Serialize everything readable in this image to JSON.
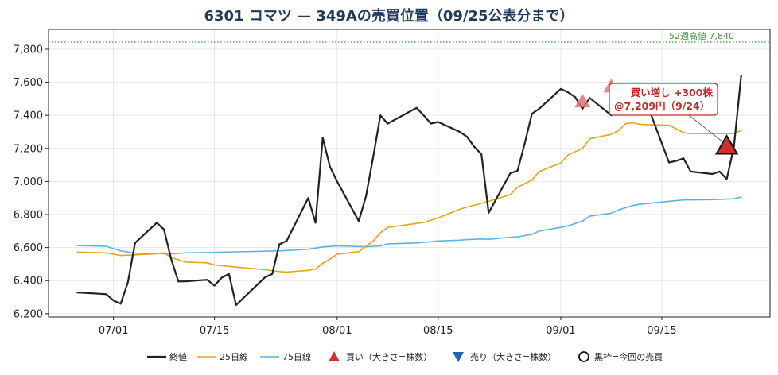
{
  "chart_data": {
    "type": "line",
    "title": "6301 コマツ — 349Aの売買位置（09/25公表分まで）",
    "ylim": [
      6180,
      7920
    ],
    "y_ticks": [
      6200,
      6400,
      6600,
      6800,
      7000,
      7200,
      7400,
      7600,
      7800
    ],
    "y_tick_labels": [
      "6,200",
      "6,400",
      "6,600",
      "6,800",
      "7,000",
      "7,200",
      "7,400",
      "7,600",
      "7,800"
    ],
    "xlim": [
      "2025-06-22",
      "2025-09-30"
    ],
    "x_ticks": [
      "2025-07-01",
      "2025-07-15",
      "2025-08-01",
      "2025-08-15",
      "2025-09-01",
      "2025-09-15"
    ],
    "x_tick_labels": [
      "07/01",
      "07/15",
      "08/01",
      "08/15",
      "09/01",
      "09/15"
    ],
    "grid": true,
    "legend_position": "bottom",
    "colors": {
      "close": "#222222",
      "ma25": "#e8a317",
      "ma75": "#5ab4e0",
      "buy": "#d32f2f",
      "buy_past": "#e57373",
      "sell": "#1e63b4",
      "ref_line": "#3a9a3a",
      "annotation": "#c62828"
    },
    "series": [
      {
        "name": "終値",
        "points": [
          [
            "2025-06-26",
            6328
          ],
          [
            "2025-06-27",
            6326
          ],
          [
            "2025-06-30",
            6318
          ],
          [
            "2025-07-01",
            6280
          ],
          [
            "2025-07-02",
            6260
          ],
          [
            "2025-07-03",
            6390
          ],
          [
            "2025-07-04",
            6628
          ],
          [
            "2025-07-07",
            6750
          ],
          [
            "2025-07-08",
            6710
          ],
          [
            "2025-07-09",
            6530
          ],
          [
            "2025-07-10",
            6395
          ],
          [
            "2025-07-11",
            6396
          ],
          [
            "2025-07-14",
            6405
          ],
          [
            "2025-07-15",
            6370
          ],
          [
            "2025-07-16",
            6418
          ],
          [
            "2025-07-17",
            6440
          ],
          [
            "2025-07-18",
            6252
          ],
          [
            "2025-07-22",
            6420
          ],
          [
            "2025-07-23",
            6440
          ],
          [
            "2025-07-24",
            6620
          ],
          [
            "2025-07-25",
            6640
          ],
          [
            "2025-07-28",
            6900
          ],
          [
            "2025-07-29",
            6750
          ],
          [
            "2025-07-30",
            7265
          ],
          [
            "2025-07-31",
            7090
          ],
          [
            "2025-08-01",
            7000
          ],
          [
            "2025-08-04",
            6760
          ],
          [
            "2025-08-05",
            6910
          ],
          [
            "2025-08-06",
            7150
          ],
          [
            "2025-08-07",
            7400
          ],
          [
            "2025-08-08",
            7350
          ],
          [
            "2025-08-12",
            7445
          ],
          [
            "2025-08-13",
            7400
          ],
          [
            "2025-08-14",
            7350
          ],
          [
            "2025-08-15",
            7360
          ],
          [
            "2025-08-18",
            7300
          ],
          [
            "2025-08-19",
            7270
          ],
          [
            "2025-08-20",
            7210
          ],
          [
            "2025-08-21",
            7165
          ],
          [
            "2025-08-22",
            6810
          ],
          [
            "2025-08-25",
            7050
          ],
          [
            "2025-08-26",
            7065
          ],
          [
            "2025-08-27",
            7230
          ],
          [
            "2025-08-28",
            7410
          ],
          [
            "2025-08-29",
            7440
          ],
          [
            "2025-09-01",
            7560
          ],
          [
            "2025-09-02",
            7540
          ],
          [
            "2025-09-03",
            7510
          ],
          [
            "2025-09-04",
            7440
          ],
          [
            "2025-09-05",
            7505
          ],
          [
            "2025-09-08",
            7400
          ],
          [
            "2025-09-09",
            7510
          ],
          [
            "2025-09-10",
            7500
          ],
          [
            "2025-09-11",
            7540
          ],
          [
            "2025-09-12",
            7580
          ],
          [
            "2025-09-16",
            7115
          ],
          [
            "2025-09-17",
            7125
          ],
          [
            "2025-09-18",
            7140
          ],
          [
            "2025-09-19",
            7060
          ],
          [
            "2025-09-22",
            7045
          ],
          [
            "2025-09-23",
            7060
          ],
          [
            "2025-09-24",
            7015
          ],
          [
            "2025-09-25",
            7209
          ],
          [
            "2025-09-26",
            7640
          ]
        ]
      },
      {
        "name": "25日線",
        "points": [
          [
            "2025-06-26",
            6572
          ],
          [
            "2025-06-30",
            6568
          ],
          [
            "2025-07-02",
            6552
          ],
          [
            "2025-07-04",
            6556
          ],
          [
            "2025-07-07",
            6562
          ],
          [
            "2025-07-08",
            6568
          ],
          [
            "2025-07-09",
            6540
          ],
          [
            "2025-07-11",
            6512
          ],
          [
            "2025-07-14",
            6508
          ],
          [
            "2025-07-15",
            6495
          ],
          [
            "2025-07-18",
            6482
          ],
          [
            "2025-07-22",
            6466
          ],
          [
            "2025-07-24",
            6455
          ],
          [
            "2025-07-25",
            6452
          ],
          [
            "2025-07-28",
            6462
          ],
          [
            "2025-07-29",
            6470
          ],
          [
            "2025-07-30",
            6505
          ],
          [
            "2025-07-31",
            6530
          ],
          [
            "2025-08-01",
            6560
          ],
          [
            "2025-08-04",
            6575
          ],
          [
            "2025-08-06",
            6640
          ],
          [
            "2025-08-07",
            6690
          ],
          [
            "2025-08-08",
            6722
          ],
          [
            "2025-08-13",
            6752
          ],
          [
            "2025-08-15",
            6780
          ],
          [
            "2025-08-18",
            6832
          ],
          [
            "2025-08-19",
            6845
          ],
          [
            "2025-08-22",
            6880
          ],
          [
            "2025-08-25",
            6920
          ],
          [
            "2025-08-26",
            6965
          ],
          [
            "2025-08-28",
            7008
          ],
          [
            "2025-08-29",
            7060
          ],
          [
            "2025-09-01",
            7112
          ],
          [
            "2025-09-02",
            7160
          ],
          [
            "2025-09-04",
            7200
          ],
          [
            "2025-09-05",
            7258
          ],
          [
            "2025-09-08",
            7285
          ],
          [
            "2025-09-09",
            7308
          ],
          [
            "2025-09-10",
            7350
          ],
          [
            "2025-09-11",
            7355
          ],
          [
            "2025-09-12",
            7345
          ],
          [
            "2025-09-16",
            7340
          ],
          [
            "2025-09-17",
            7318
          ],
          [
            "2025-09-18",
            7295
          ],
          [
            "2025-09-19",
            7290
          ],
          [
            "2025-09-22",
            7290
          ],
          [
            "2025-09-25",
            7290
          ],
          [
            "2025-09-26",
            7308
          ]
        ]
      },
      {
        "name": "75日線",
        "points": [
          [
            "2025-06-26",
            6612
          ],
          [
            "2025-06-30",
            6608
          ],
          [
            "2025-07-02",
            6580
          ],
          [
            "2025-07-04",
            6566
          ],
          [
            "2025-07-09",
            6562
          ],
          [
            "2025-07-11",
            6568
          ],
          [
            "2025-07-14",
            6570
          ],
          [
            "2025-07-16",
            6572
          ],
          [
            "2025-07-18",
            6574
          ],
          [
            "2025-07-22",
            6578
          ],
          [
            "2025-07-24",
            6580
          ],
          [
            "2025-07-28",
            6590
          ],
          [
            "2025-07-30",
            6604
          ],
          [
            "2025-08-01",
            6610
          ],
          [
            "2025-08-05",
            6605
          ],
          [
            "2025-08-07",
            6610
          ],
          [
            "2025-08-08",
            6622
          ],
          [
            "2025-08-12",
            6628
          ],
          [
            "2025-08-14",
            6635
          ],
          [
            "2025-08-15",
            6640
          ],
          [
            "2025-08-18",
            6645
          ],
          [
            "2025-08-19",
            6648
          ],
          [
            "2025-08-21",
            6652
          ],
          [
            "2025-08-22",
            6650
          ],
          [
            "2025-08-25",
            6662
          ],
          [
            "2025-08-26",
            6665
          ],
          [
            "2025-08-28",
            6680
          ],
          [
            "2025-08-29",
            6700
          ],
          [
            "2025-09-01",
            6722
          ],
          [
            "2025-09-02",
            6732
          ],
          [
            "2025-09-04",
            6760
          ],
          [
            "2025-09-05",
            6790
          ],
          [
            "2025-09-08",
            6808
          ],
          [
            "2025-09-09",
            6828
          ],
          [
            "2025-09-11",
            6855
          ],
          [
            "2025-09-12",
            6862
          ],
          [
            "2025-09-16",
            6880
          ],
          [
            "2025-09-18",
            6888
          ],
          [
            "2025-09-22",
            6890
          ],
          [
            "2025-09-25",
            6895
          ],
          [
            "2025-09-26",
            6906
          ]
        ]
      }
    ],
    "ref_line": {
      "value": 7843,
      "label": "52週高値 7,840"
    },
    "markers": [
      {
        "type": "buy",
        "date": "2025-09-04",
        "price": 7480,
        "current": false
      },
      {
        "type": "buy",
        "date": "2025-09-08",
        "price": 7570,
        "current": false
      },
      {
        "type": "buy",
        "date": "2025-09-24",
        "price": 7209,
        "current": true
      }
    ],
    "annotation": {
      "line1": "買い増し +300株",
      "line2": "@7,209円（9/24）",
      "anchor_date": "2025-09-24",
      "anchor_price": 7209
    },
    "legend": [
      {
        "kind": "line",
        "color_key": "close",
        "label": "終値"
      },
      {
        "kind": "line",
        "color_key": "ma25",
        "label": "25日線"
      },
      {
        "kind": "line",
        "color_key": "ma75",
        "label": "75日線"
      },
      {
        "kind": "tri-up",
        "color_key": "buy",
        "label": "買い（大きさ=株数）"
      },
      {
        "kind": "tri-down",
        "color_key": "sell",
        "label": "売り（大きさ=株数）"
      },
      {
        "kind": "circle",
        "color_key": "close",
        "label": "黒枠=今回の売買"
      }
    ]
  }
}
